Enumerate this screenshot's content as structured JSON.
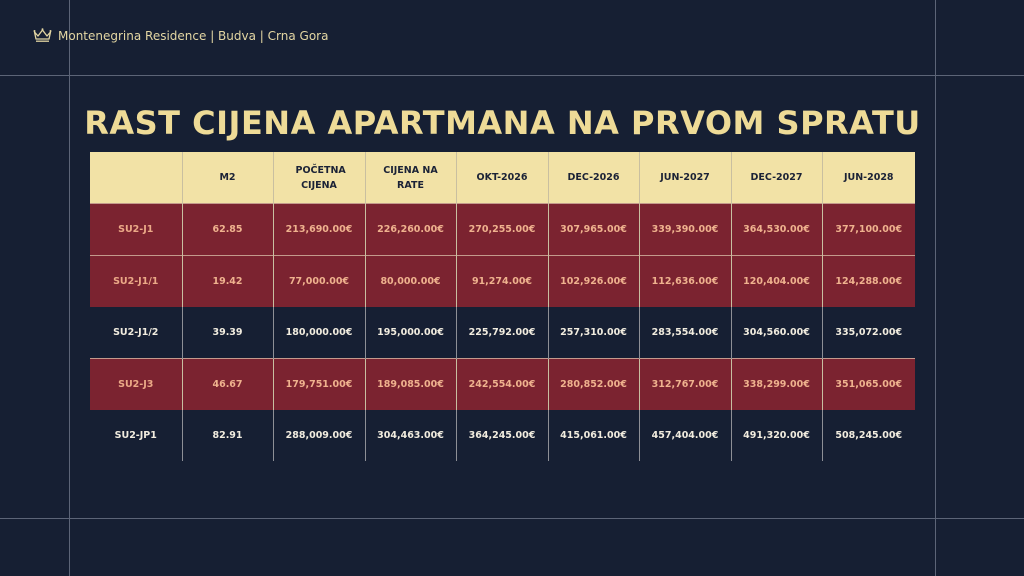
{
  "brand": {
    "logo_icon": "crown-icon",
    "text": "Montenegrina Residence | Budva | Crna Gora"
  },
  "title": "RAST CIJENA APARTMANA NA PRVOM SPRATU",
  "colors": {
    "background": "#161f33",
    "header_fill": "#f2e2a6",
    "highlight_row": "#7b2330",
    "title_color": "#eedb97"
  },
  "table": {
    "headers": [
      "",
      "M2",
      "POČETNA CIJENA",
      "CIJENA NA RATE",
      "OKT-2026",
      "DEC-2026",
      "JUN-2027",
      "DEC-2027",
      "JUN-2028"
    ],
    "rows": [
      [
        "SU2-J1",
        "62.85",
        "213,690.00€",
        "226,260.00€",
        "270,255.00€",
        "307,965.00€",
        "339,390.00€",
        "364,530.00€",
        "377,100.00€"
      ],
      [
        "SU2-J1/1",
        "19.42",
        "77,000.00€",
        "80,000.00€",
        "91,274.00€",
        "102,926.00€",
        "112,636.00€",
        "120,404.00€",
        "124,288.00€"
      ],
      [
        "SU2-J1/2",
        "39.39",
        "180,000.00€",
        "195,000.00€",
        "225,792.00€",
        "257,310.00€",
        "283,554.00€",
        "304,560.00€",
        "335,072.00€"
      ],
      [
        "SU2-J3",
        "46.67",
        "179,751.00€",
        "189,085.00€",
        "242,554.00€",
        "280,852.00€",
        "312,767.00€",
        "338,299.00€",
        "351,065.00€"
      ],
      [
        "SU2-JP1",
        "82.91",
        "288,009.00€",
        "304,463.00€",
        "364,245.00€",
        "415,061.00€",
        "457,404.00€",
        "491,320.00€",
        "508,245.00€"
      ]
    ]
  }
}
